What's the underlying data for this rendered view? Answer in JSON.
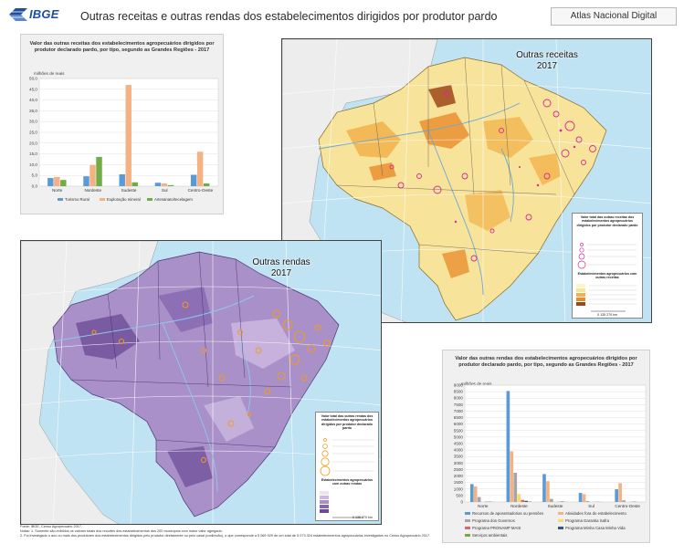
{
  "header": {
    "logo_text": "IBGE",
    "title": "Outras receitas e outras rendas dos estabelecimentos dirigidos por produtor pardo",
    "app_name": "Atlas Nacional Digital"
  },
  "chart_data": [
    {
      "type": "bar",
      "title": "Valor das outras receitas dos estabelecimentos agropecuários dirigidos por produtor declarado pardo, por tipo, segundo as Grandes Regiões - 2017",
      "ylabel": "milhões de reais",
      "categories": [
        "Norte",
        "Nordeste",
        "Sudeste",
        "Sul",
        "Centro-Oeste"
      ],
      "yticks": [
        "0,0",
        "5,0",
        "10,0",
        "15,0",
        "20,0",
        "25,0",
        "30,0",
        "35,0",
        "40,0",
        "45,0",
        "50,0"
      ],
      "ylim": [
        0,
        50
      ],
      "grid": true,
      "legend_position": "bottom",
      "series": [
        {
          "name": "Turismo Rural",
          "color": "#5b9bd5",
          "values": [
            3.8,
            4.6,
            5.5,
            1.6,
            5.3
          ]
        },
        {
          "name": "Exploração mineral",
          "color": "#f4b183",
          "values": [
            4.3,
            9.8,
            47.0,
            1.3,
            16.0
          ]
        },
        {
          "name": "Artesanato/tecelagem",
          "color": "#70ad47",
          "values": [
            2.9,
            13.6,
            1.8,
            0.5,
            1.3
          ]
        }
      ]
    },
    {
      "type": "bar",
      "title": "Valor das outras rendas dos estabelecimentos agropecuários dirigidos por produtor declarado pardo, por tipo, segundo as Grandes Regiões - 2017",
      "ylabel": "milhões de reais",
      "categories": [
        "Norte",
        "Nordeste",
        "Sudeste",
        "Sul",
        "Centro-Oeste"
      ],
      "yticks": [
        "0",
        "500",
        "1000",
        "1500",
        "2000",
        "2500",
        "3000",
        "3500",
        "4000",
        "4500",
        "5000",
        "5500",
        "6000",
        "6500",
        "7000",
        "7500",
        "8000",
        "8500",
        "9000"
      ],
      "ylim": [
        0,
        9000
      ],
      "grid": true,
      "legend_position": "bottom",
      "series": [
        {
          "name": "Recursos de aposentadorias ou pensões",
          "color": "#5b9bd5",
          "values": [
            1380,
            8550,
            2150,
            700,
            980
          ]
        },
        {
          "name": "Atividades fora do estabelecimento",
          "color": "#f4b183",
          "values": [
            1200,
            3900,
            1600,
            600,
            1450
          ]
        },
        {
          "name": "Programa dos Governos",
          "color": "#a5a5a5",
          "values": [
            380,
            2250,
            240,
            70,
            130
          ]
        },
        {
          "name": "Programa Garantia Safra",
          "color": "#ffd966",
          "values": [
            0,
            620,
            30,
            0,
            0
          ]
        },
        {
          "name": "Programa PRONAMP MAIS",
          "color": "#e06666",
          "values": [
            30,
            160,
            20,
            10,
            10
          ]
        },
        {
          "name": "Programa Minha Casa Minha Vida",
          "color": "#2f5597",
          "values": [
            20,
            90,
            30,
            10,
            20
          ]
        },
        {
          "name": "Serviços ambientais",
          "color": "#70ad47",
          "values": [
            10,
            40,
            10,
            5,
            5
          ]
        }
      ]
    }
  ],
  "map_top": {
    "title_line1": "Outras receitas",
    "title_line2": "2017",
    "legend_title": "Valor total das outras receitas dos estabelecimentos agropecuários dirigidos por produtor declarado pardo",
    "legend_sub": "Estabelecimentos agropecuários com outras receitas",
    "legend_scale": "0  135 270 km",
    "colors": {
      "land": "#f7e39a",
      "high": "#e98b2a",
      "very_high": "#a0461a",
      "ocean": "#bfe3f2",
      "neighbors": "#ededed",
      "symbols": "#d62c8c"
    }
  },
  "map_bottom": {
    "title_line1": "Outras rendas",
    "title_line2": "2017",
    "legend_title": "Valor total das outras rendas dos estabelecimentos agropecuários dirigidos por produtor declarado pardo",
    "legend_sub": "Estabelecimentos agropecuários com outras rendas",
    "legend_scale": "0  135 270 km",
    "colors": {
      "land": "#a990c8",
      "dark": "#6b4a96",
      "light": "#cbb9e0",
      "ocean": "#bfe3f2",
      "neighbors": "#ededed",
      "symbols": "#f29a1e"
    }
  },
  "footnotes": {
    "line1": "Fonte: IBGE, Censo Agropecuário 2017.",
    "line2": "Notas: 1. Somente são exibidos os valores totais dos recortes dos estabelecimentos dos 200 municípios com maior valor agregado.",
    "line3": "2. Foi investigado o ano ou mais dos produtores dos estabelecimentos dirigidos pelo produtor diretamente ou pelo casal (codirecão), o que corresponde a 5 069 929 de um total de 5 073 324 estabelecimentos agropecuários investigados no Censo Agropecuário 2017."
  }
}
